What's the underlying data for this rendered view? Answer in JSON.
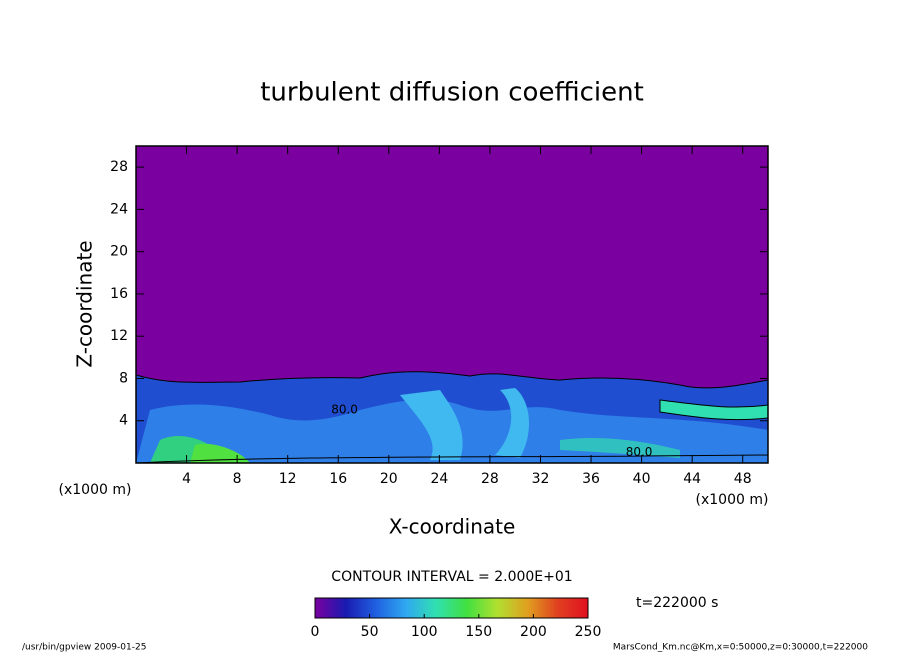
{
  "chart_data": {
    "type": "contour",
    "title": "turbulent diffusion coefficient",
    "x_label": "X-coordinate",
    "y_label": "Z-coordinate",
    "x_unit": "(x1000 m)",
    "y_unit": "(x1000 m)",
    "xlim": [
      0,
      50
    ],
    "ylim": [
      0,
      30
    ],
    "xticks": [
      4,
      8,
      12,
      16,
      20,
      24,
      28,
      32,
      36,
      40,
      44,
      48
    ],
    "yticks": [
      4,
      8,
      12,
      16,
      20,
      24,
      28
    ],
    "contour_interval": "CONTOUR INTERVAL = 2.000E+01",
    "contour_labels": [
      {
        "text": "80.0",
        "x": 16.5,
        "y": 5.0
      },
      {
        "text": "80.0",
        "x": 39.8,
        "y": 1.0
      }
    ],
    "colorbar_lim": [
      0,
      250
    ],
    "colorbar_ticks": [
      0,
      50,
      100,
      150,
      200,
      250
    ],
    "colorbar_colors": [
      "#7a00a0",
      "#1a1ab0",
      "#1f5fe0",
      "#2fa8f0",
      "#30e0b0",
      "#40e040",
      "#b0e030",
      "#e0a020",
      "#e04020",
      "#e01020"
    ],
    "time_label": "t=222000 s",
    "footer_left": "/usr/bin/gpview  2009-01-25",
    "footer_right": "MarsCond_Km.nc@Km,x=0:50000,z=0:30000,t=222000"
  }
}
